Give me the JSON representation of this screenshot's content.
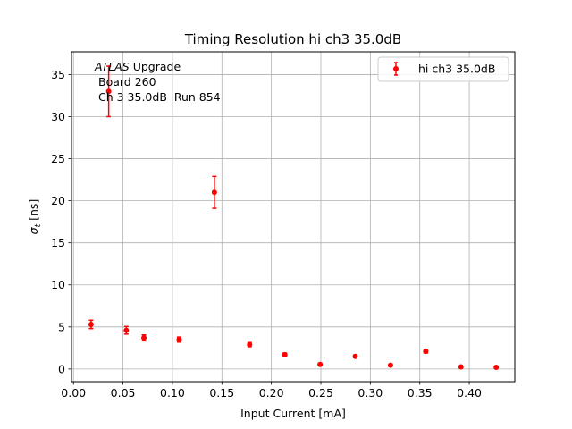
{
  "chart_data": {
    "type": "scatter",
    "title": "Timing Resolution hi ch3 35.0dB",
    "xlabel": "Input Current [mA]",
    "ylabel_symbol": "σ",
    "ylabel_subscript": "t",
    "ylabel_unit": " [ns]",
    "xlim": [
      -0.002,
      0.446
    ],
    "ylim": [
      -1.5,
      37.7
    ],
    "x_ticks": [
      0.0,
      0.05,
      0.1,
      0.15,
      0.2,
      0.25,
      0.3,
      0.35,
      0.4
    ],
    "x_tick_labels": [
      "0.00",
      "0.05",
      "0.10",
      "0.15",
      "0.20",
      "0.25",
      "0.30",
      "0.35",
      "0.40"
    ],
    "y_ticks": [
      0,
      5,
      10,
      15,
      20,
      25,
      30,
      35
    ],
    "y_tick_labels": [
      "0",
      "5",
      "10",
      "15",
      "20",
      "25",
      "30",
      "35"
    ],
    "grid": true,
    "legend_position": "top-right",
    "annotation": {
      "atlas": "ATLAS",
      "upgrade": " Upgrade",
      "line2": "Board 260",
      "line3": "Ch 3 35.0dB  Run 854"
    },
    "series": [
      {
        "name": "hi ch3 35.0dB",
        "color": "#ff0000",
        "x": [
          0.0178,
          0.0356,
          0.0534,
          0.0712,
          0.1068,
          0.1424,
          0.178,
          0.2136,
          0.2492,
          0.2848,
          0.3204,
          0.356,
          0.3916,
          0.4272
        ],
        "y": [
          5.3,
          33.0,
          4.6,
          3.7,
          3.5,
          21.0,
          2.9,
          1.7,
          0.55,
          1.5,
          0.45,
          2.1,
          0.25,
          0.2
        ],
        "yerr": [
          0.5,
          3.0,
          0.45,
          0.35,
          0.3,
          1.9,
          0.25,
          0.2,
          0.1,
          0.15,
          0.1,
          0.2,
          0.05,
          0.05
        ]
      }
    ]
  }
}
